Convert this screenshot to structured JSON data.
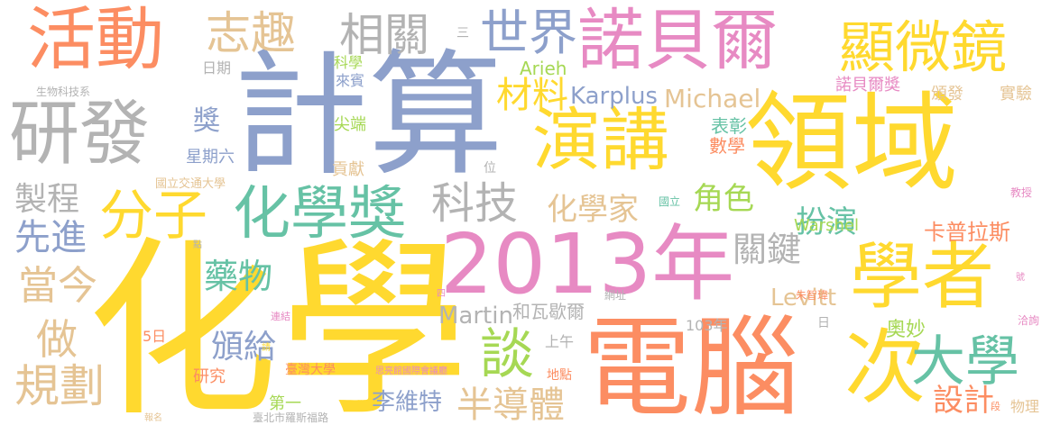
{
  "palette": {
    "pink": "#e78ac3",
    "blue": "#8da0cb",
    "yellow": "#ffd92f",
    "orange": "#fc8d62",
    "green": "#a6d854",
    "teal": "#66c2a5",
    "tan": "#e5c494",
    "gray": "#b3b3b3"
  },
  "words": [
    {
      "text": "化學",
      "color": "yellow"
    },
    {
      "text": "計算",
      "color": "blue"
    },
    {
      "text": "領域",
      "color": "yellow"
    },
    {
      "text": "電腦",
      "color": "orange"
    },
    {
      "text": "2013年",
      "color": "pink"
    },
    {
      "text": "諾貝爾",
      "color": "pink"
    },
    {
      "text": "活動",
      "color": "orange"
    },
    {
      "text": "研發",
      "color": "gray"
    },
    {
      "text": "演講",
      "color": "yellow"
    },
    {
      "text": "學者",
      "color": "yellow"
    },
    {
      "text": "化學獎",
      "color": "teal"
    },
    {
      "text": "顯微鏡",
      "color": "yellow"
    },
    {
      "text": "次",
      "color": "yellow"
    },
    {
      "text": "大學",
      "color": "teal"
    },
    {
      "text": "分子",
      "color": "yellow"
    },
    {
      "text": "志趣",
      "color": "tan"
    },
    {
      "text": "相關",
      "color": "gray"
    },
    {
      "text": "世界",
      "color": "blue"
    },
    {
      "text": "科技",
      "color": "gray"
    },
    {
      "text": "當今",
      "color": "tan"
    },
    {
      "text": "規劃",
      "color": "tan"
    },
    {
      "text": "做",
      "color": "tan"
    },
    {
      "text": "製程",
      "color": "gray"
    },
    {
      "text": "先進",
      "color": "blue"
    },
    {
      "text": "藥物",
      "color": "teal"
    },
    {
      "text": "談",
      "color": "green"
    },
    {
      "text": "半導體",
      "color": "tan"
    },
    {
      "text": "頒給",
      "color": "blue"
    },
    {
      "text": "材料",
      "color": "yellow"
    },
    {
      "text": "獎",
      "color": "blue"
    },
    {
      "text": "化學家",
      "color": "tan"
    },
    {
      "text": "角色",
      "color": "green"
    },
    {
      "text": "扮演",
      "color": "teal"
    },
    {
      "text": "關鍵",
      "color": "gray"
    },
    {
      "text": "卡普拉斯",
      "color": "orange"
    },
    {
      "text": "設計",
      "color": "orange"
    },
    {
      "text": "李維特",
      "color": "blue"
    },
    {
      "text": "Karplus",
      "color": "blue"
    },
    {
      "text": "Michael",
      "color": "tan"
    },
    {
      "text": "Martin",
      "color": "gray"
    },
    {
      "text": "Levitt",
      "color": "tan"
    },
    {
      "text": "Arieh",
      "color": "green"
    },
    {
      "text": "Warshel",
      "color": "green"
    },
    {
      "text": "和瓦歇爾",
      "color": "gray"
    },
    {
      "text": "奧妙",
      "color": "green"
    },
    {
      "text": "表彰",
      "color": "teal"
    },
    {
      "text": "數學",
      "color": "orange"
    },
    {
      "text": "尖端",
      "color": "green"
    },
    {
      "text": "貢獻",
      "color": "tan"
    },
    {
      "text": "星期六",
      "color": "blue"
    },
    {
      "text": "日期",
      "color": "gray"
    },
    {
      "text": "科學",
      "color": "green"
    },
    {
      "text": "來賓",
      "color": "blue"
    },
    {
      "text": "諾貝爾獎",
      "color": "pink"
    },
    {
      "text": "頒發",
      "color": "tan"
    },
    {
      "text": "實驗",
      "color": "tan"
    },
    {
      "text": "103年",
      "color": "gray"
    },
    {
      "text": "上午",
      "color": "gray"
    },
    {
      "text": "研究",
      "color": "orange"
    },
    {
      "text": "第一",
      "color": "green"
    },
    {
      "text": "5日",
      "color": "orange"
    },
    {
      "text": "臺灣大學",
      "color": "orange"
    },
    {
      "text": "地點",
      "color": "orange"
    },
    {
      "text": "物理",
      "color": "tan"
    },
    {
      "text": "國立交通大學",
      "color": "tan"
    },
    {
      "text": "生物科技系",
      "color": "gray"
    },
    {
      "text": "教授",
      "color": "pink"
    },
    {
      "text": "國立",
      "color": "teal"
    },
    {
      "text": "位",
      "color": "gray"
    },
    {
      "text": "日",
      "color": "gray"
    },
    {
      "text": "朱智瑋",
      "color": "orange"
    },
    {
      "text": "網址",
      "color": "gray"
    },
    {
      "text": "洽詢",
      "color": "pink"
    },
    {
      "text": "號",
      "color": "pink"
    },
    {
      "text": "連結",
      "color": "pink"
    },
    {
      "text": "臺北市羅斯福路",
      "color": "gray"
    },
    {
      "text": "思亮館國際會議廳",
      "color": "pink"
    },
    {
      "text": "報名",
      "color": "tan"
    },
    {
      "text": "請",
      "color": "yellow"
    },
    {
      "text": "點",
      "color": "gray"
    },
    {
      "text": "段",
      "color": "orange"
    },
    {
      "text": "四",
      "color": "pink"
    },
    {
      "text": "三",
      "color": "gray"
    }
  ]
}
